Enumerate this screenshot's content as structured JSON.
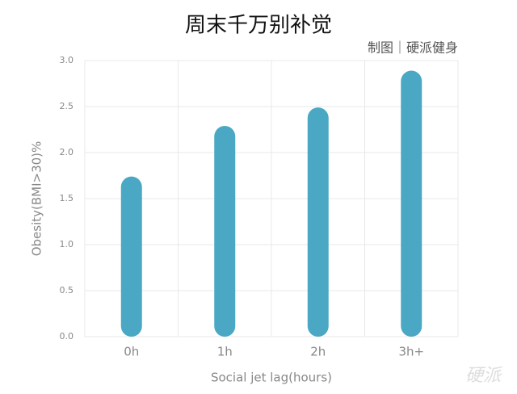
{
  "chart_data": {
    "type": "bar",
    "title": "周末千万别补觉",
    "subtitle": "制图｜硬派健身",
    "watermark": "硬派",
    "x_label": "Social jet lag(hours)",
    "y_label": "Obesity(BMI>30)%",
    "categories": [
      "0h",
      "1h",
      "2h",
      "3h+"
    ],
    "values": [
      1.74,
      2.29,
      2.49,
      2.89
    ],
    "color": "#4aa8c4",
    "ylim": [
      0,
      3
    ],
    "yticks": [
      {
        "value": 0,
        "label": "0.0"
      },
      0.5,
      {
        "value": 1,
        "label": "1.0"
      },
      1.5,
      {
        "value": 2,
        "label": "2.0"
      },
      2.5,
      {
        "value": 3,
        "label": "3.0"
      }
    ],
    "grid": true
  }
}
